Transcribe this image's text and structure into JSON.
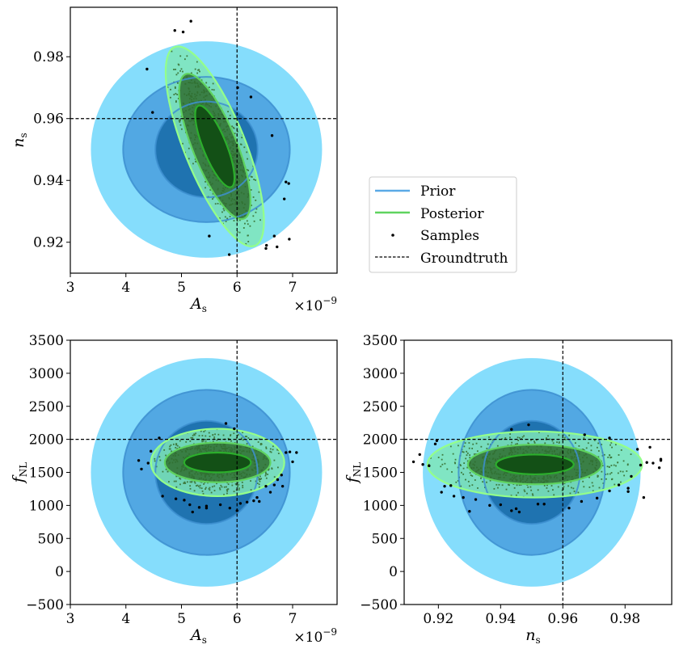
{
  "chart_data": [
    {
      "type": "scatter",
      "panel": "top-left",
      "title": "",
      "xlabel": "A_s",
      "xlabel_main": "A",
      "xlabel_sub": "s",
      "ylabel": "n_s",
      "ylabel_main": "n",
      "ylabel_sub": "s",
      "x_offset_label": "×10",
      "x_offset_exp": "−9",
      "xlim": [
        3.0,
        7.8
      ],
      "ylim": [
        0.91,
        0.996
      ],
      "xticks": [
        3,
        4,
        5,
        6,
        7
      ],
      "xtick_labels": [
        "3",
        "4",
        "5",
        "6",
        "7"
      ],
      "yticks": [
        0.92,
        0.94,
        0.96,
        0.98
      ],
      "ytick_labels": [
        "0.92",
        "0.94",
        "0.96",
        "0.98"
      ],
      "groundtruth": {
        "x": 6.0,
        "y": 0.96
      },
      "prior": {
        "center": [
          5.45,
          0.95
        ],
        "radii": [
          [
            2.08,
            0.035
          ],
          [
            1.5,
            0.0235
          ],
          [
            0.92,
            0.0155
          ]
        ],
        "angle": 0
      },
      "posterior": {
        "center": [
          5.6,
          0.951
        ],
        "levels": [
          [
            1.0,
            0.033
          ],
          [
            0.72,
            0.024
          ],
          [
            0.38,
            0.0135
          ]
        ],
        "tilt": -0.55
      },
      "outliers": [
        [
          4.38,
          0.976
        ],
        [
          4.88,
          0.9885
        ],
        [
          5.03,
          0.988
        ],
        [
          5.17,
          0.9915
        ],
        [
          4.48,
          0.962
        ],
        [
          6.63,
          0.9545
        ],
        [
          6.88,
          0.9395
        ],
        [
          6.93,
          0.939
        ],
        [
          6.85,
          0.934
        ],
        [
          6.67,
          0.922
        ],
        [
          6.53,
          0.919
        ],
        [
          6.52,
          0.918
        ],
        [
          6.72,
          0.9185
        ],
        [
          6.94,
          0.921
        ],
        [
          5.5,
          0.922
        ],
        [
          5.86,
          0.916
        ],
        [
          6.25,
          0.967
        ],
        [
          6.01,
          0.97
        ]
      ]
    },
    {
      "type": "scatter",
      "panel": "bottom-left",
      "title": "",
      "xlabel": "A_s",
      "xlabel_main": "A",
      "xlabel_sub": "s",
      "ylabel": "f_NL",
      "ylabel_main": "f",
      "ylabel_sub": "NL",
      "x_offset_label": "×10",
      "x_offset_exp": "−9",
      "xlim": [
        3.0,
        7.8
      ],
      "ylim": [
        -500,
        3500
      ],
      "xticks": [
        3,
        4,
        5,
        6,
        7
      ],
      "xtick_labels": [
        "3",
        "4",
        "5",
        "6",
        "7"
      ],
      "yticks": [
        -500,
        0,
        500,
        1000,
        1500,
        2000,
        2500,
        3000,
        3500
      ],
      "ytick_labels": [
        "−500",
        "0",
        "500",
        "1000",
        "1500",
        "2000",
        "2500",
        "3000",
        "3500"
      ],
      "groundtruth": {
        "x": 6.0,
        "y": 2000
      },
      "prior": {
        "center": [
          5.45,
          1500
        ],
        "radii": [
          [
            2.08,
            1730
          ],
          [
            1.5,
            1250
          ],
          [
            0.92,
            780
          ]
        ],
        "angle": 0
      },
      "posterior": {
        "center": [
          5.65,
          1650
        ],
        "levels": [
          [
            1.2,
            510
          ],
          [
            0.95,
            300
          ],
          [
            0.6,
            150
          ]
        ],
        "tilt": 0
      },
      "outliers": [
        [
          4.23,
          1680
        ],
        [
          4.28,
          1550
        ],
        [
          4.4,
          1640
        ],
        [
          4.6,
          2020
        ],
        [
          4.45,
          1820
        ],
        [
          4.66,
          1140
        ],
        [
          4.9,
          1100
        ],
        [
          5.05,
          1080
        ],
        [
          5.15,
          1010
        ],
        [
          5.2,
          900
        ],
        [
          5.32,
          970
        ],
        [
          5.45,
          990
        ],
        [
          5.45,
          960
        ],
        [
          5.7,
          1010
        ],
        [
          5.87,
          960
        ],
        [
          6.0,
          920
        ],
        [
          6.06,
          1030
        ],
        [
          6.18,
          1050
        ],
        [
          6.3,
          1070
        ],
        [
          6.36,
          1120
        ],
        [
          6.4,
          1060
        ],
        [
          6.52,
          1290
        ],
        [
          6.6,
          1200
        ],
        [
          6.67,
          1310
        ],
        [
          6.73,
          1390
        ],
        [
          6.8,
          1460
        ],
        [
          6.82,
          1290
        ],
        [
          6.88,
          1800
        ],
        [
          6.95,
          1810
        ],
        [
          7.0,
          1660
        ],
        [
          7.07,
          1800
        ],
        [
          5.8,
          2240
        ],
        [
          5.95,
          2160
        ]
      ]
    },
    {
      "type": "scatter",
      "panel": "bottom-right",
      "title": "",
      "xlabel": "n_s",
      "xlabel_main": "n",
      "xlabel_sub": "s",
      "ylabel": "f_NL",
      "ylabel_main": "f",
      "ylabel_sub": "NL",
      "xlim": [
        0.909,
        0.995
      ],
      "ylim": [
        -500,
        3500
      ],
      "xticks": [
        0.92,
        0.94,
        0.96,
        0.98
      ],
      "xtick_labels": [
        "0.92",
        "0.94",
        "0.96",
        "0.98"
      ],
      "yticks": [
        -500,
        0,
        500,
        1000,
        1500,
        2000,
        2500,
        3000,
        3500
      ],
      "ytick_labels": [
        "−500",
        "0",
        "500",
        "1000",
        "1500",
        "2000",
        "2500",
        "3000",
        "3500"
      ],
      "groundtruth": {
        "x": 0.96,
        "y": 2000
      },
      "prior": {
        "center": [
          0.95,
          1500
        ],
        "radii": [
          [
            0.035,
            1730
          ],
          [
            0.0235,
            1250
          ],
          [
            0.0155,
            780
          ]
        ],
        "angle": 0
      },
      "posterior": {
        "center": [
          0.951,
          1620
        ],
        "levels": [
          [
            0.0345,
            500
          ],
          [
            0.0215,
            300
          ],
          [
            0.0125,
            150
          ]
        ],
        "tilt": 0
      },
      "outliers": [
        [
          0.912,
          1660
        ],
        [
          0.914,
          1770
        ],
        [
          0.915,
          1620
        ],
        [
          0.917,
          1600
        ],
        [
          0.919,
          1930
        ],
        [
          0.9195,
          1980
        ],
        [
          0.921,
          1200
        ],
        [
          0.922,
          1290
        ],
        [
          0.924,
          1300
        ],
        [
          0.925,
          1140
        ],
        [
          0.928,
          1120
        ],
        [
          0.93,
          910
        ],
        [
          0.932,
          1090
        ],
        [
          0.9365,
          1000
        ],
        [
          0.94,
          1010
        ],
        [
          0.9435,
          920
        ],
        [
          0.9435,
          2150
        ],
        [
          0.945,
          950
        ],
        [
          0.946,
          900
        ],
        [
          0.949,
          2220
        ],
        [
          0.952,
          1020
        ],
        [
          0.954,
          1020
        ],
        [
          0.962,
          960
        ],
        [
          0.966,
          1060
        ],
        [
          0.967,
          2070
        ],
        [
          0.971,
          1110
        ],
        [
          0.975,
          1220
        ],
        [
          0.975,
          2020
        ],
        [
          0.978,
          1310
        ],
        [
          0.981,
          1260
        ],
        [
          0.981,
          1210
        ],
        [
          0.982,
          1440
        ],
        [
          0.984,
          1850
        ],
        [
          0.985,
          1610
        ],
        [
          0.986,
          1120
        ],
        [
          0.987,
          1650
        ],
        [
          0.988,
          1880
        ],
        [
          0.989,
          1640
        ],
        [
          0.991,
          1570
        ],
        [
          0.9915,
          1680
        ],
        [
          0.9915,
          1700
        ]
      ]
    }
  ],
  "legend": {
    "placement": "center-right of top row",
    "entries": [
      {
        "label": "Prior",
        "kind": "line",
        "color": "#5aa9e6"
      },
      {
        "label": "Posterior",
        "kind": "line",
        "color": "#5fd35f"
      },
      {
        "label": "Samples",
        "kind": "point",
        "color": "#000000"
      },
      {
        "label": "Groundtruth",
        "kind": "dashed",
        "color": "#000000"
      }
    ]
  },
  "colors": {
    "prior_outer": "#85ddfc",
    "prior_mid": "#52a8e3",
    "prior_inner": "#1f73b0",
    "prior_line": "#3d8fd0",
    "post_outer_fill": "#7fe6b8",
    "post_mid_fill": "#2f6e30",
    "post_inner_fill": "#135016",
    "post_outer_line": "#94ff8a",
    "post_mid_line": "#5fd35f",
    "post_inner_line": "#2cae2c",
    "sample_dots": "#3e7a3e"
  }
}
